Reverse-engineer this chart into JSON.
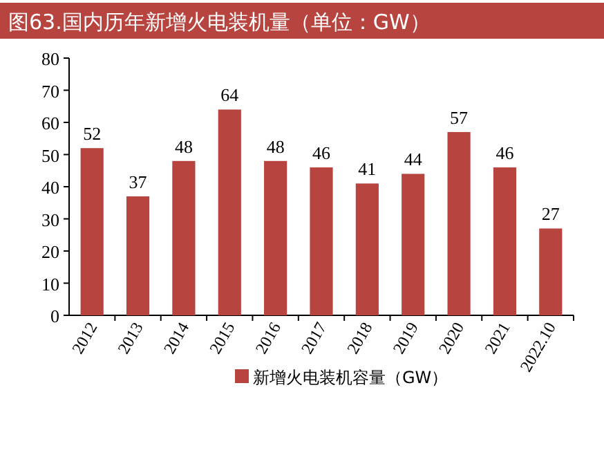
{
  "chart_data": {
    "type": "bar",
    "title": "图63.国内历年新增火电装机量（单位：GW）",
    "categories": [
      "2012",
      "2013",
      "2014",
      "2015",
      "2016",
      "2017",
      "2018",
      "2019",
      "2020",
      "2021",
      "2022.10"
    ],
    "series": [
      {
        "name": "新增火电装机容量（GW）",
        "color": "#b8443f",
        "values": [
          52,
          37,
          48,
          64,
          48,
          46,
          41,
          44,
          57,
          46,
          27
        ]
      }
    ],
    "ylim": [
      0,
      80
    ],
    "yticks": [
      0,
      10,
      20,
      30,
      40,
      50,
      60,
      70,
      80
    ],
    "data_labels": true,
    "legend": "bottom",
    "grid": false
  }
}
